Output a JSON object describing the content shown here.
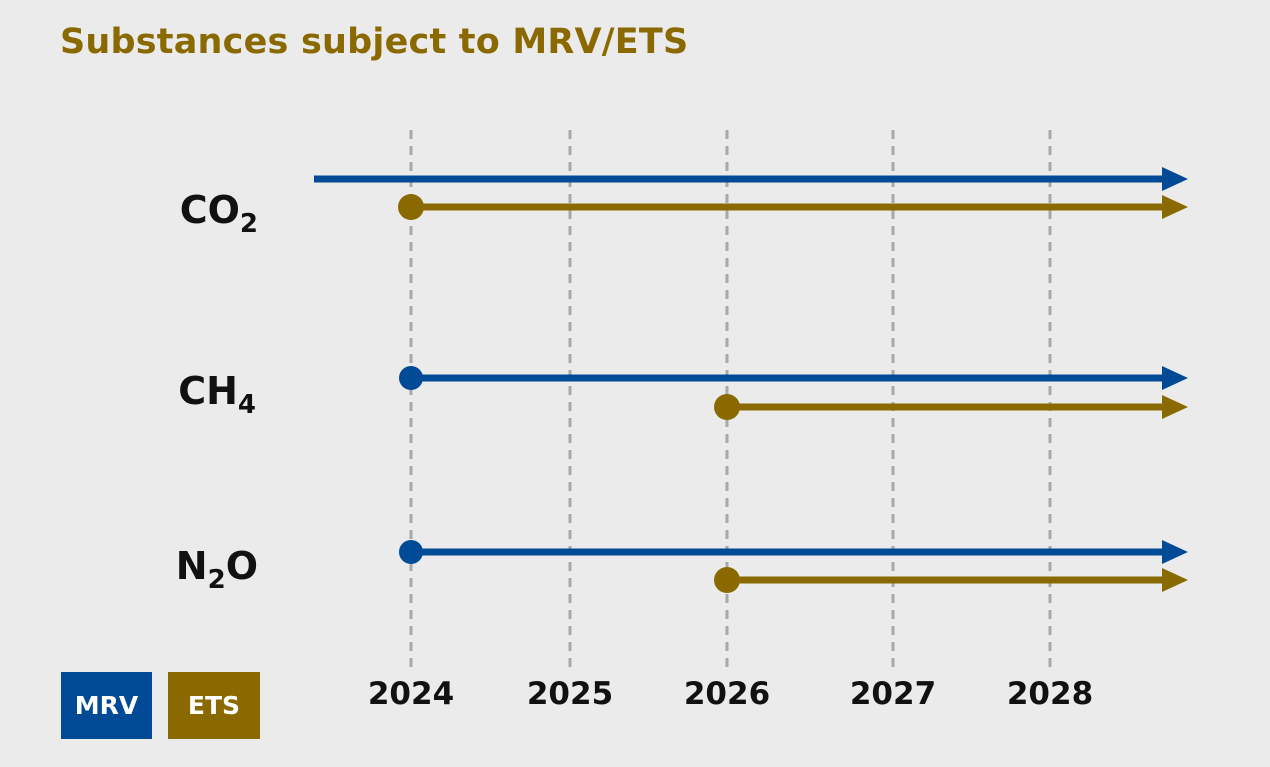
{
  "chart_data": {
    "type": "timeline",
    "title": "Substances subject to MRV/ETS",
    "x_ticks": [
      "2024",
      "2025",
      "2026",
      "2027",
      "2028"
    ],
    "xlim": [
      "2023",
      "2029"
    ],
    "rows": [
      {
        "formula": "CO",
        "subscript": "2"
      },
      {
        "formula": "CH",
        "subscript": "4"
      },
      {
        "formula": "N",
        "subscript": "2",
        "suffix": "O"
      }
    ],
    "series": [
      {
        "name": "MRV",
        "color": "#004a96",
        "bars": [
          {
            "row": 0,
            "start": "before 2024",
            "start_marker": false,
            "open_ended": true
          },
          {
            "row": 1,
            "start": "2024",
            "start_marker": true,
            "open_ended": true
          },
          {
            "row": 2,
            "start": "2024",
            "start_marker": true,
            "open_ended": true
          }
        ]
      },
      {
        "name": "ETS",
        "color": "#8a6a00",
        "bars": [
          {
            "row": 0,
            "start": "2024",
            "start_marker": true,
            "open_ended": true
          },
          {
            "row": 1,
            "start": "2026",
            "start_marker": true,
            "open_ended": true
          },
          {
            "row": 2,
            "start": "2026",
            "start_marker": true,
            "open_ended": true
          }
        ]
      }
    ],
    "legend": [
      {
        "label": "MRV",
        "color": "#004a96"
      },
      {
        "label": "ETS",
        "color": "#8a6a00"
      }
    ],
    "legend_placement": "bottom-left",
    "gridlines": "vertical dashed at each year",
    "grid_color": "#a8a8a8"
  }
}
